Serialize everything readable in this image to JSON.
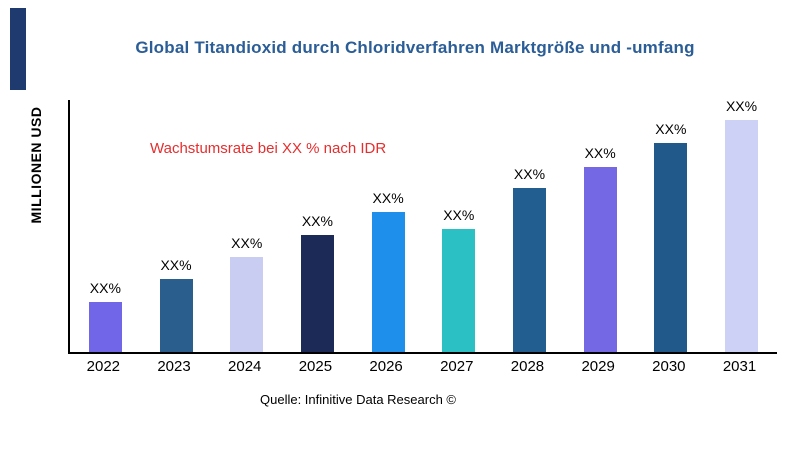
{
  "page": {
    "title": "Global Titandioxid durch Chloridverfahren Marktgröße und -umfang",
    "annotation": "Wachstumsrate bei XX % nach IDR",
    "source": "Quelle: Infinitive Data Research ©"
  },
  "colors": {
    "title": "#2B5D97",
    "annotation": "#E62E2E",
    "accent_bar": "#1E3A6E",
    "axis": "#000000",
    "background": "#FFFFFF"
  },
  "chart_data": {
    "type": "bar",
    "title": "Global Titandioxid durch Chloridverfahren Marktgröße und -umfang",
    "ylabel": "MILLIONEN USD",
    "xlabel": "",
    "categories": [
      "2022",
      "2023",
      "2024",
      "2025",
      "2026",
      "2027",
      "2028",
      "2029",
      "2030",
      "2031"
    ],
    "values": [
      50,
      73,
      95,
      117,
      140,
      123,
      164,
      185,
      209,
      232
    ],
    "bar_labels": [
      "XX%",
      "XX%",
      "XX%",
      "XX%",
      "XX%",
      "XX%",
      "XX%",
      "XX%",
      "XX%",
      "XX%"
    ],
    "bar_colors": [
      "#7166E8",
      "#2A5E8C",
      "#C9CDF1",
      "#1C2A58",
      "#1E8FEA",
      "#2BC0C4",
      "#225E8F",
      "#7468E4",
      "#21598A",
      "#CDD1F5"
    ],
    "ylim": [
      0,
      252
    ],
    "grid": false,
    "legend": null,
    "annotation": "Wachstumsrate bei XX % nach IDR",
    "source": "Quelle: Infinitive Data Research ©"
  }
}
